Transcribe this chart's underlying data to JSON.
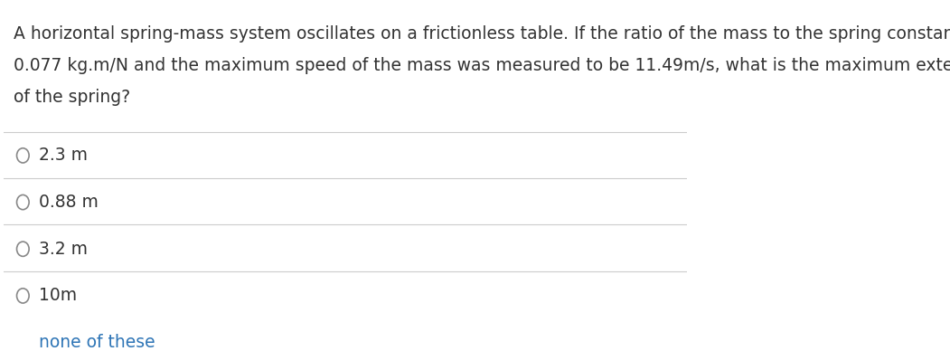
{
  "question_lines": [
    "A horizontal spring-mass system oscillates on a frictionless table. If the ratio of the mass to the spring constant is",
    "0.077 kg.m/N and the maximum speed of the mass was measured to be 11.49m/s, what is the maximum extension",
    "of the spring?"
  ],
  "options": [
    "2.3 m",
    "0.88 m",
    "3.2 m",
    "10m",
    "none of these"
  ],
  "option_colors": [
    "#333333",
    "#333333",
    "#333333",
    "#333333",
    "#2e75b6"
  ],
  "background_color": "#ffffff",
  "question_color": "#333333",
  "line_color": "#cccccc",
  "circle_color": "#888888",
  "font_size_question": 13.5,
  "font_size_options": 13.5,
  "figwidth": 10.51,
  "figheight": 3.88
}
